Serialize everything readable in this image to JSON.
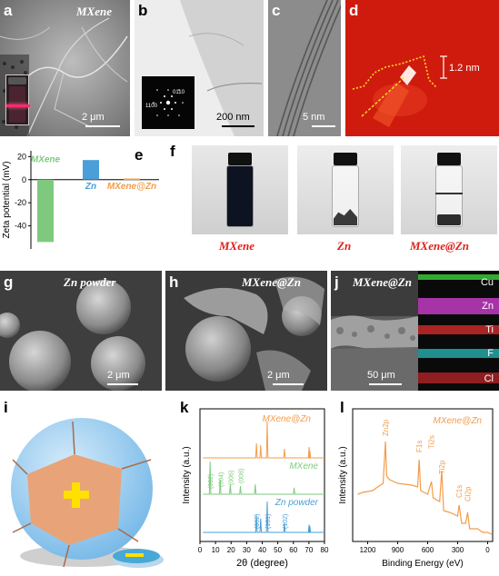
{
  "panels": {
    "a": {
      "letter": "a",
      "label": "MXene",
      "scale": "2 μm"
    },
    "b": {
      "letter": "b",
      "scale": "200 nm",
      "saed": [
        "1100",
        "0110"
      ]
    },
    "c": {
      "letter": "c",
      "scale": "5 nm"
    },
    "d": {
      "letter": "d",
      "height": "1.2 nm"
    },
    "e": {
      "letter": "e"
    },
    "f": {
      "letter": "f",
      "vials": [
        "MXene",
        "Zn",
        "MXene@Zn"
      ]
    },
    "g": {
      "letter": "g",
      "label": "Zn powder",
      "scale": "2 μm"
    },
    "h": {
      "letter": "h",
      "label": "MXene@Zn",
      "scale": "2 μm"
    },
    "j": {
      "letter": "j",
      "label": "MXene@Zn",
      "scale": "50 μm",
      "elements": [
        "Cu",
        "Zn",
        "Ti",
        "F",
        "Cl"
      ]
    },
    "i": {
      "letter": "i"
    },
    "k": {
      "letter": "k"
    },
    "l": {
      "letter": "l"
    }
  },
  "colors": {
    "mxene": "#7fc97f",
    "zn": "#4a9fd8",
    "mxene_zn": "#f39c4a",
    "red_label": "#e0201a",
    "afm_red": "#d81e10",
    "sem_gray": "#9a9a9a"
  },
  "chart_data": [
    {
      "type": "bar",
      "panel": "e",
      "categories": [
        "MXene",
        "Zn",
        "MXene@Zn"
      ],
      "values": [
        -54,
        17,
        1
      ],
      "ylabel": "Zeta potential (mV)",
      "ylim": [
        -60,
        25
      ],
      "yticks": [
        "20",
        "0",
        "-20",
        "-40"
      ],
      "xlabel": ""
    },
    {
      "type": "line",
      "panel": "k",
      "xlabel": "2θ (degree)",
      "ylabel": "Intensity (a.u.)",
      "xlim": [
        0,
        80
      ],
      "xticks": [
        "0",
        "10",
        "20",
        "30",
        "40",
        "50",
        "60",
        "70",
        "80"
      ],
      "series": [
        {
          "name": "MXene@Zn",
          "peaks": [
            [
              36.3,
              0.4
            ],
            [
              39.0,
              0.35
            ],
            [
              43.2,
              1.0
            ],
            [
              54.3,
              0.25
            ],
            [
              70.1,
              0.3
            ],
            [
              70.6,
              0.2
            ]
          ]
        },
        {
          "name": "MXene",
          "peaks": [
            [
              6.5,
              1.0
            ],
            [
              13.0,
              0.45
            ],
            [
              19.5,
              0.3
            ],
            [
              26.0,
              0.25
            ],
            [
              35.5,
              0.3
            ],
            [
              60.5,
              0.2
            ]
          ]
        },
        {
          "name": "Zn powder",
          "peaks": [
            [
              36.3,
              0.55
            ],
            [
              39.0,
              0.45
            ],
            [
              43.2,
              1.0
            ],
            [
              54.3,
              0.3
            ],
            [
              70.1,
              0.25
            ],
            [
              70.6,
              0.2
            ]
          ]
        }
      ],
      "annotations": {
        "MXene": [
          "(002)",
          "(004)",
          "(006)",
          "(008)"
        ],
        "Zn powder": [
          "(002)",
          "(101)",
          "(102)"
        ]
      }
    },
    {
      "type": "line",
      "panel": "l",
      "title": "MXene@Zn",
      "xlabel": "Binding Energy (eV)",
      "ylabel": "Intensity (a.u.)",
      "xlim": [
        1350,
        -50
      ],
      "xticks": [
        "1200",
        "900",
        "600",
        "300",
        "0"
      ],
      "peaks": [
        {
          "label": "Zn2p",
          "x": 1022
        },
        {
          "label": "F1s",
          "x": 685
        },
        {
          "label": "Ti2s",
          "x": 562
        },
        {
          "label": "Ti2p",
          "x": 459
        },
        {
          "label": "C1s",
          "x": 285
        },
        {
          "label": "Cl2p",
          "x": 200
        }
      ]
    }
  ]
}
